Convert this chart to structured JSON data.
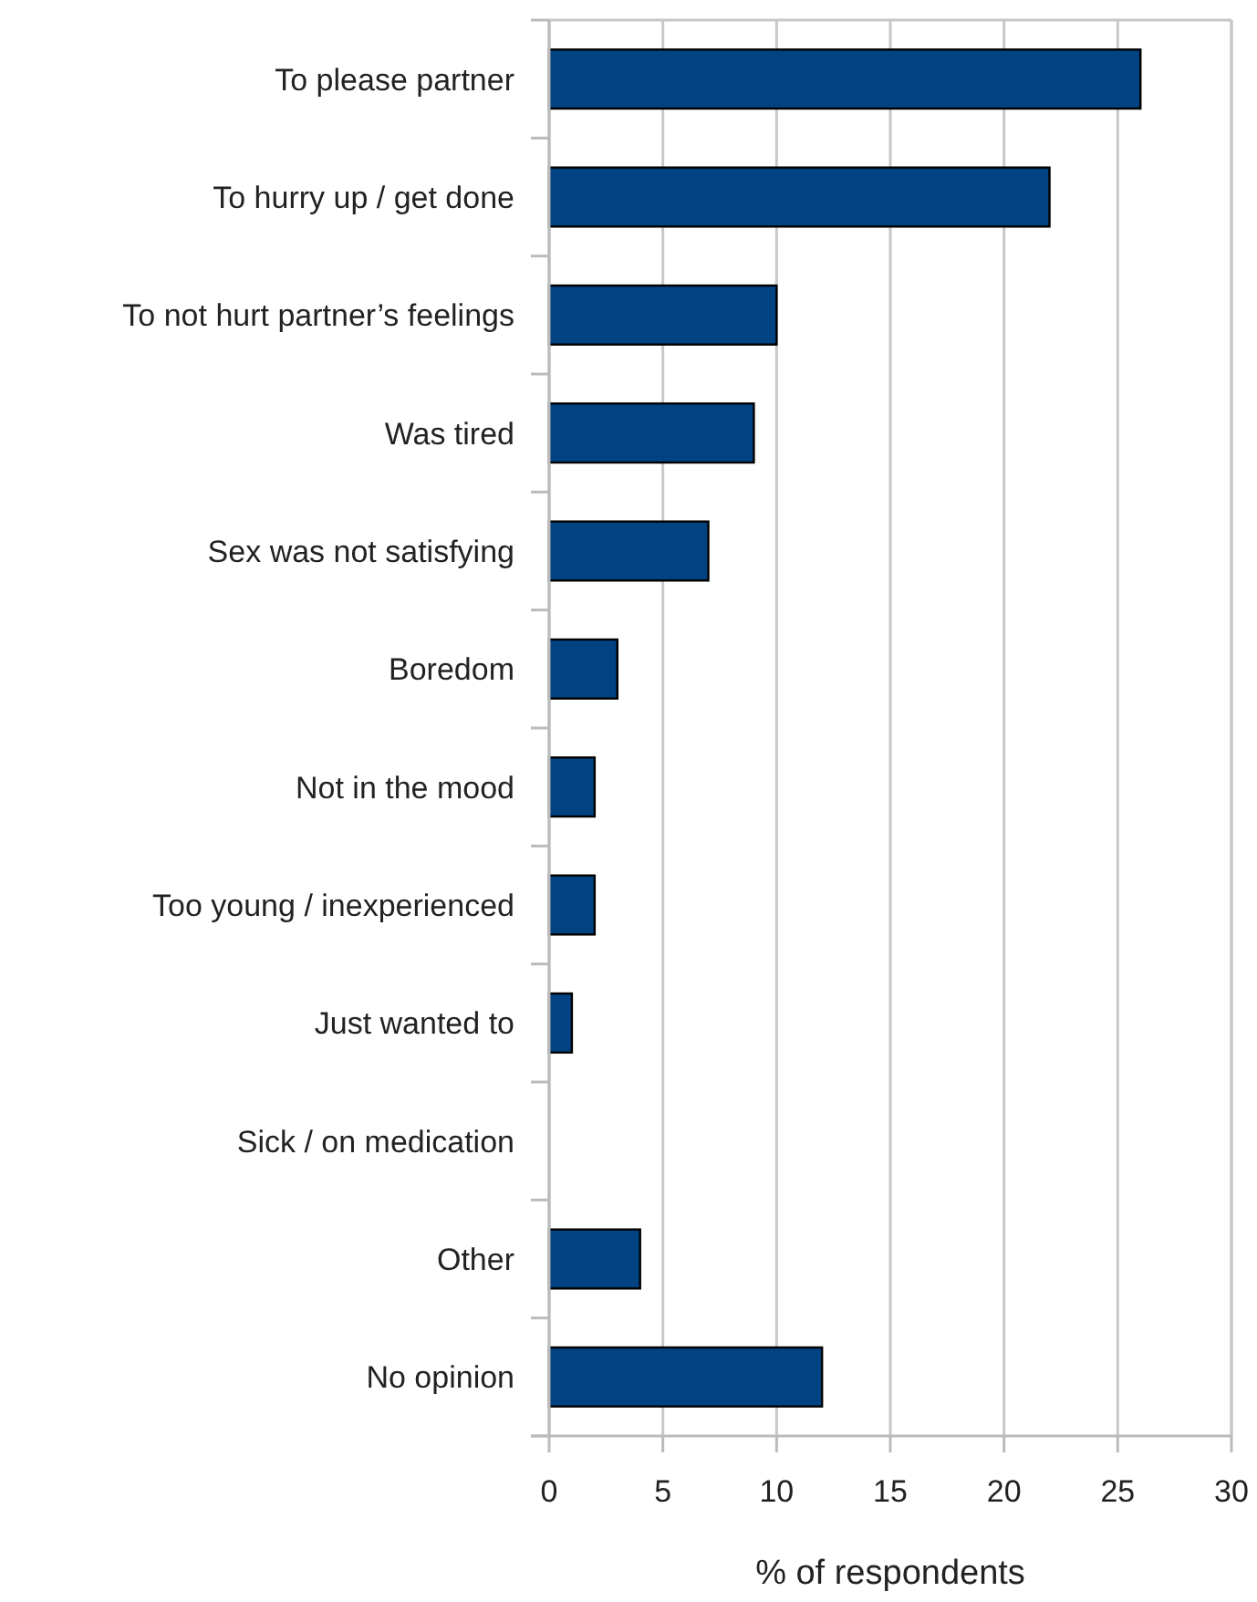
{
  "chart_data": {
    "type": "bar",
    "orientation": "horizontal",
    "xlabel": "% of respondents",
    "categories": [
      "To please partner",
      "To hurry up / get done",
      "To not hurt partner’s feelings",
      "Was tired",
      "Sex was not satisfying",
      "Boredom",
      "Not in the mood",
      "Too young / inexperienced",
      "Just wanted to",
      "Sick / on medication",
      "Other",
      "No opinion"
    ],
    "values": [
      26,
      22,
      10,
      9,
      7,
      3,
      2,
      2,
      1,
      0,
      4,
      12
    ],
    "color": "#004282",
    "xlim": [
      0,
      30
    ],
    "xticks": [
      0,
      5,
      10,
      15,
      20,
      25,
      30
    ],
    "grid": "x"
  }
}
